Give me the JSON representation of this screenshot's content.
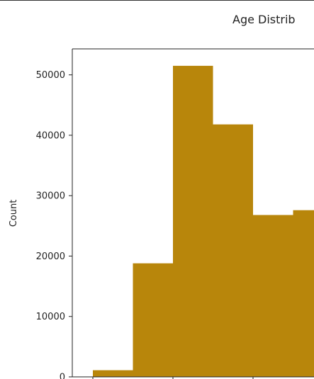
{
  "chart_data": {
    "type": "bar",
    "title": "Age Distrib",
    "xlabel": "",
    "ylabel": "Count",
    "bar_color": "#b8860b",
    "ylim": [
      0,
      54300
    ],
    "yticks": [
      0,
      10000,
      20000,
      30000,
      40000,
      50000
    ],
    "ytick_labels": [
      "0",
      "10000",
      "20000",
      "30000",
      "40000",
      "50000"
    ],
    "bins": [
      {
        "index": 0,
        "value": 1100
      },
      {
        "index": 1,
        "value": 18800
      },
      {
        "index": 2,
        "value": 51500
      },
      {
        "index": 3,
        "value": 41800
      },
      {
        "index": 4,
        "value": 26800
      },
      {
        "index": 5,
        "value": 27600
      }
    ],
    "grid": false
  }
}
